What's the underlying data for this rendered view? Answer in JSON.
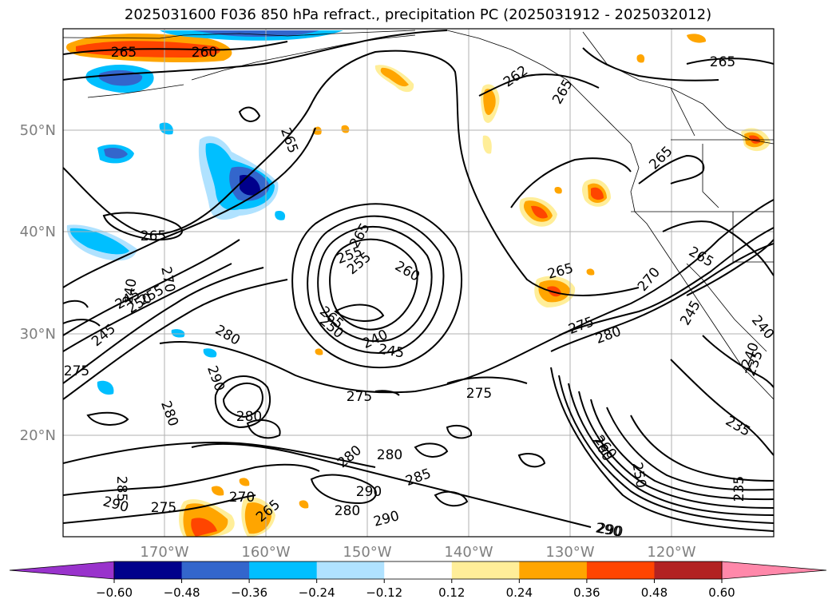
{
  "title": "2025031600 F036 850 hPa refract., precipitation PC (2025031912 - 2025032012)",
  "lat_labels": [
    "50°N",
    "40°N",
    "30°N",
    "20°N"
  ],
  "lon_labels": [
    "170°W",
    "160°W",
    "150°W",
    "140°W",
    "130°W",
    "120°W"
  ],
  "colorbar": {
    "colors": [
      "#9933cc",
      "#00008b",
      "#3366cc",
      "#00bfff",
      "#b0e2ff",
      "#ffffff",
      "#ffee99",
      "#ffa500",
      "#ff4500",
      "#b22222",
      "#ff88aa"
    ],
    "tick_labels": [
      "−0.60",
      "−0.48",
      "−0.36",
      "−0.24",
      "−0.12",
      "0.12",
      "0.24",
      "0.36",
      "0.48",
      "0.60"
    ]
  },
  "contour_labels": [
    "265",
    "260",
    "265",
    "265",
    "265",
    "262",
    "265",
    "265",
    "265",
    "265",
    "265",
    "255",
    "260",
    "265",
    "240",
    "245",
    "250",
    "255",
    "270",
    "240",
    "245",
    "280",
    "270",
    "275",
    "280",
    "245",
    "250",
    "255",
    "240",
    "245",
    "235",
    "260",
    "290",
    "280",
    "280",
    "275",
    "275",
    "275",
    "280",
    "280",
    "285",
    "290",
    "290",
    "280",
    "285",
    "290",
    "290",
    "270",
    "265",
    "275",
    "240",
    "250",
    "260",
    "290",
    "235",
    "235"
  ]
}
